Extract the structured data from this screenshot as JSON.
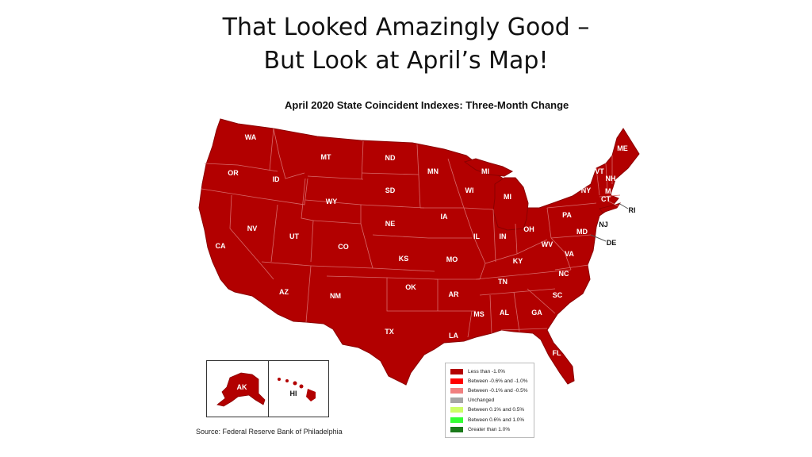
{
  "slide": {
    "title_line1": "That Looked Amazingly Good –",
    "title_line2": "But Look at April’s Map!"
  },
  "map": {
    "title": "April 2020 State Coincident Indexes: Three-Month Change",
    "fill_color": "#b20000",
    "border_color": "#d76a6a",
    "states": [
      "WA",
      "OR",
      "CA",
      "ID",
      "NV",
      "MT",
      "WY",
      "UT",
      "AZ",
      "CO",
      "NM",
      "ND",
      "SD",
      "NE",
      "KS",
      "OK",
      "TX",
      "MN",
      "IA",
      "MO",
      "AR",
      "LA",
      "WI",
      "IL",
      "MI",
      "IN",
      "OH",
      "KY",
      "TN",
      "MS",
      "AL",
      "GA",
      "FL",
      "SC",
      "NC",
      "VA",
      "WV",
      "PA",
      "NY",
      "VT",
      "NH",
      "ME",
      "MA",
      "CT",
      "RI",
      "NJ",
      "DE",
      "MD",
      "AK",
      "HI"
    ],
    "state_category": "Less than -1.0%"
  },
  "legend": [
    {
      "label": "Less than -1.0%",
      "color": "#b30000"
    },
    {
      "label": "Between -0.6% and -1.0%",
      "color": "#ff0000"
    },
    {
      "label": "Between -0.1% and -0.5%",
      "color": "#f08080"
    },
    {
      "label": "Unchanged",
      "color": "#a6a6a6"
    },
    {
      "label": "Between 0.1% and 0.5%",
      "color": "#ccff66"
    },
    {
      "label": "Between 0.6% and 1.0%",
      "color": "#33ff33"
    },
    {
      "label": "Greater than 1.0%",
      "color": "#1a7a1a"
    }
  ],
  "source": "Source: Federal Reserve Bank of Philadelphia"
}
